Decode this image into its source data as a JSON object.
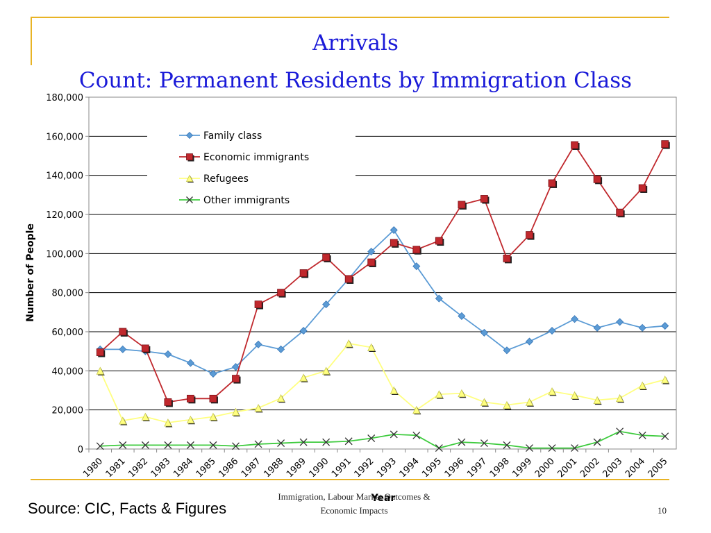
{
  "colors": {
    "frame": "#e8b325",
    "title": "#1a1ad8"
  },
  "header": {
    "title": "Arrivals",
    "subtitle": "Count: Permanent Residents by Immigration Class"
  },
  "footer": {
    "source": "Source: CIC, Facts & Figures",
    "line1": "Immigration, Labour Market Outcomes &",
    "line2": "Economic Impacts",
    "page": "10"
  },
  "chart_data": {
    "type": "line",
    "title": "",
    "xlabel": "Year",
    "ylabel": "Number of People",
    "ylim": [
      0,
      180000
    ],
    "yticks": [
      0,
      20000,
      40000,
      60000,
      80000,
      100000,
      120000,
      140000,
      160000,
      180000
    ],
    "ytick_labels": [
      "0",
      "20,000",
      "40,000",
      "60,000",
      "80,000",
      "100,000",
      "120,000",
      "140,000",
      "160,000",
      "180,000"
    ],
    "grid": true,
    "legend": "top-center",
    "x": [
      "1980",
      "1981",
      "1982",
      "1983",
      "1984",
      "1985",
      "1986",
      "1987",
      "1988",
      "1989",
      "1990",
      "1991",
      "1992",
      "1993",
      "1994",
      "1995",
      "1996",
      "1997",
      "1998",
      "1999",
      "2000",
      "2001",
      "2002",
      "2003",
      "2004",
      "2005"
    ],
    "series": [
      {
        "name": "Family class",
        "color": "#5b9bd5",
        "marker": "diamond",
        "values": [
          51000,
          51000,
          50000,
          48500,
          44000,
          38500,
          42000,
          53500,
          51000,
          60500,
          74000,
          87000,
          101000,
          112000,
          93500,
          77000,
          68000,
          59500,
          50500,
          55000,
          60500,
          66500,
          62000,
          65000,
          62000,
          63000
        ]
      },
      {
        "name": "Economic immigrants",
        "color": "#c0282d",
        "marker": "square",
        "values": [
          49500,
          60000,
          51500,
          24000,
          25800,
          25800,
          36000,
          74000,
          80000,
          90000,
          98000,
          87000,
          95500,
          105500,
          102000,
          106500,
          125000,
          128000,
          97500,
          109500,
          136000,
          155500,
          138000,
          121000,
          133500,
          156000
        ]
      },
      {
        "name": "Refugees",
        "color": "#ffff80",
        "marker": "triangle",
        "values": [
          40000,
          14500,
          16500,
          13500,
          15000,
          16500,
          19000,
          21000,
          26000,
          36500,
          40000,
          54000,
          52000,
          30000,
          20000,
          28000,
          28500,
          24000,
          22500,
          24000,
          29500,
          27500,
          25000,
          26000,
          32500,
          35500
        ]
      },
      {
        "name": "Other immigrants",
        "color": "#3ecb3e",
        "marker": "x",
        "values": [
          1500,
          2000,
          2000,
          2000,
          2000,
          2000,
          1500,
          2500,
          3000,
          3500,
          3500,
          4000,
          5500,
          7500,
          7000,
          500,
          3500,
          3000,
          2000,
          500,
          500,
          500,
          3500,
          9000,
          7000,
          6500
        ]
      }
    ]
  }
}
